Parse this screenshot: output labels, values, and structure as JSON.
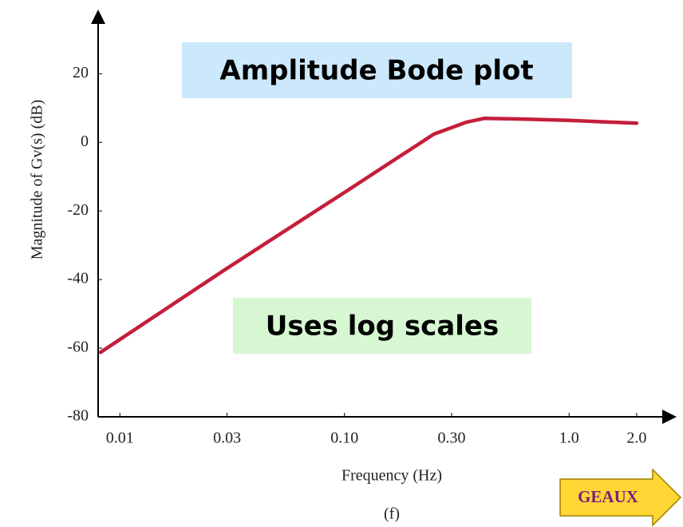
{
  "chart_data": {
    "type": "line",
    "annotations": [
      "Amplitude Bode plot",
      "Uses log scales"
    ],
    "xlabel": "Frequency (Hz)",
    "ylabel": "Magnitude of Gv(s) (dB)",
    "caption": "(f)",
    "x": [
      0.0082,
      0.03,
      0.1,
      0.25,
      0.35,
      0.42,
      0.6,
      1.0,
      1.5,
      2.0
    ],
    "series": [
      {
        "color": "#c41e3a",
        "values": [
          -61.2,
          -36.7,
          -14.6,
          2.4,
          5.9,
          7,
          6.8,
          6.4,
          5.9,
          5.6
        ]
      }
    ],
    "xlim": [
      0.008,
      2.6
    ],
    "xticks": [
      0.01,
      0.03,
      {
        "value": 0.1,
        "label": "0.10"
      },
      {
        "value": 0.3,
        "label": "0.30"
      },
      {
        "value": 1,
        "label": "1.0"
      },
      {
        "value": 2,
        "label": "2.0"
      }
    ],
    "xscale": "log",
    "ylim": [
      -80,
      38
    ],
    "yticks": [
      -80,
      -60,
      -40,
      -20,
      0,
      20
    ],
    "grid": false
  },
  "button": {
    "label": "GEAUX"
  }
}
